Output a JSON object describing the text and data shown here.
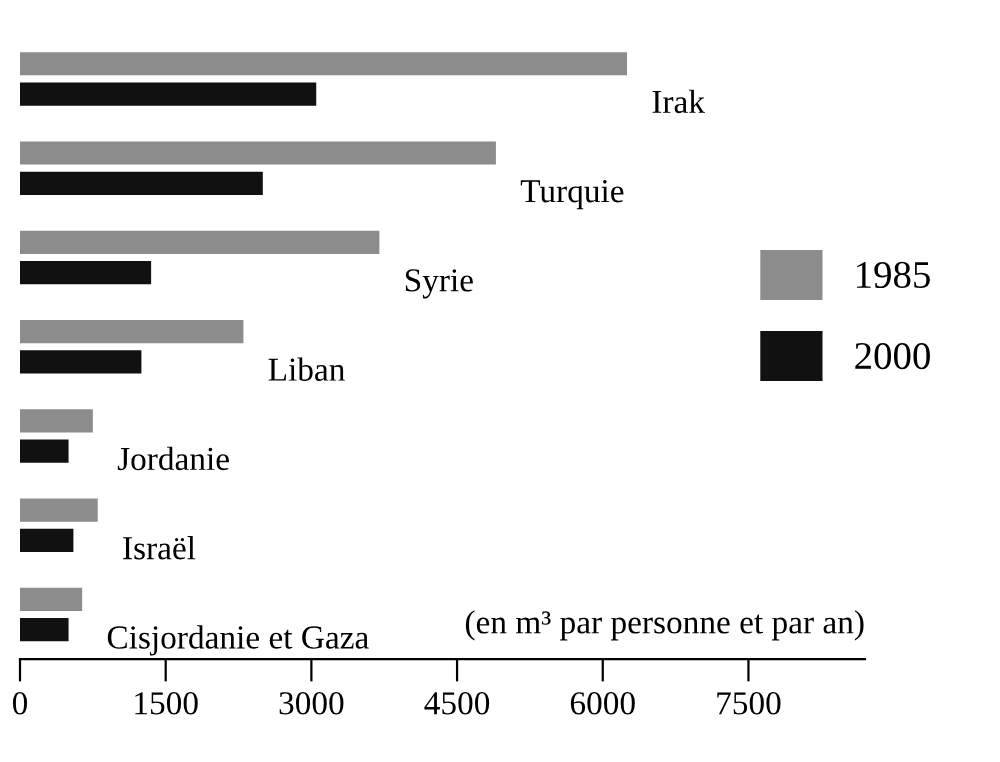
{
  "chart_data": {
    "type": "bar",
    "orientation": "horizontal",
    "categories": [
      "Irak",
      "Turquie",
      "Syrie",
      "Liban",
      "Jordanie",
      "Israël",
      "Cisjordanie et Gaza"
    ],
    "series": [
      {
        "name": "1985",
        "color": "#8c8c8c",
        "values": [
          6250,
          4900,
          3700,
          2300,
          750,
          800,
          640
        ]
      },
      {
        "name": "2000",
        "color": "#111111",
        "values": [
          3050,
          2500,
          1350,
          1250,
          500,
          550,
          500
        ]
      }
    ],
    "xlabel": "(en m³ par personne et par an)",
    "xlim": [
      0,
      8700
    ],
    "xticks": [
      0,
      1500,
      3000,
      4500,
      6000,
      7500
    ],
    "grid": false,
    "legend": "right",
    "tick_labels": "x"
  }
}
